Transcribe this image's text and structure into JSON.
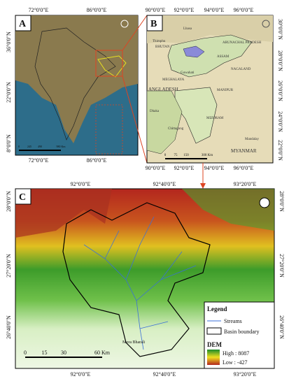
{
  "panel_a": {
    "label": "A",
    "top_ticks": [
      "72°0'0\"E",
      "86°0'0\"E"
    ],
    "bottom_ticks": [
      "72°0'0\"E",
      "86°0'0\"E"
    ],
    "left_ticks": [
      "36°0'0\"N",
      "22°0'0\"N",
      "8°0'0\"N"
    ],
    "scale": [
      "0",
      "245",
      "490",
      "980 Km"
    ]
  },
  "panel_b": {
    "label": "B",
    "top_ticks": [
      "90°0'0\"E",
      "92°0'0\"E",
      "94°0'0\"E",
      "96°0'0\"E"
    ],
    "bottom_ticks": [
      "90°0'0\"E",
      "92°0'0\"E",
      "94°0'0\"E",
      "96°0'0\"E"
    ],
    "right_ticks": [
      "30°0'0\"N",
      "28°0'0\"N",
      "26°0'0\"N",
      "24°0'0\"N",
      "22°0'0\"N"
    ],
    "places": [
      "Lhasa",
      "Thimphu",
      "BHUTAN",
      "ARUNACHAL PRADESH",
      "ASSAM",
      "Guwahati",
      "MEGHALAYA",
      "NAGALAND",
      "MANIPUR",
      "MIZORAM",
      "ANGLADESH",
      "Dhaka",
      "Chittagong",
      "Mandalay",
      "MYANMAR"
    ],
    "scale": [
      "0",
      "75",
      "150",
      "300 Km"
    ]
  },
  "panel_c": {
    "label": "C",
    "top_ticks": [
      "92°0'0\"E",
      "92°40'0\"E",
      "93°20'0\"E"
    ],
    "bottom_ticks": [
      "92°0'0\"E",
      "92°40'0\"E",
      "93°20'0\"E"
    ],
    "left_ticks": [
      "28°0'0\"N",
      "27°20'0\"N",
      "26°40'0\"N"
    ],
    "right_ticks": [
      "28°0'0\"N",
      "27°20'0\"N",
      "26°40'0\"N"
    ],
    "river": "Mora Bharali",
    "scale": [
      "0",
      "15",
      "30",
      "60 Km"
    ],
    "legend": {
      "title": "Legend",
      "streams": "Streams",
      "basin": "Basin boundary",
      "dem": "DEM",
      "high": "High : 8087",
      "low": "Low : -427"
    }
  }
}
